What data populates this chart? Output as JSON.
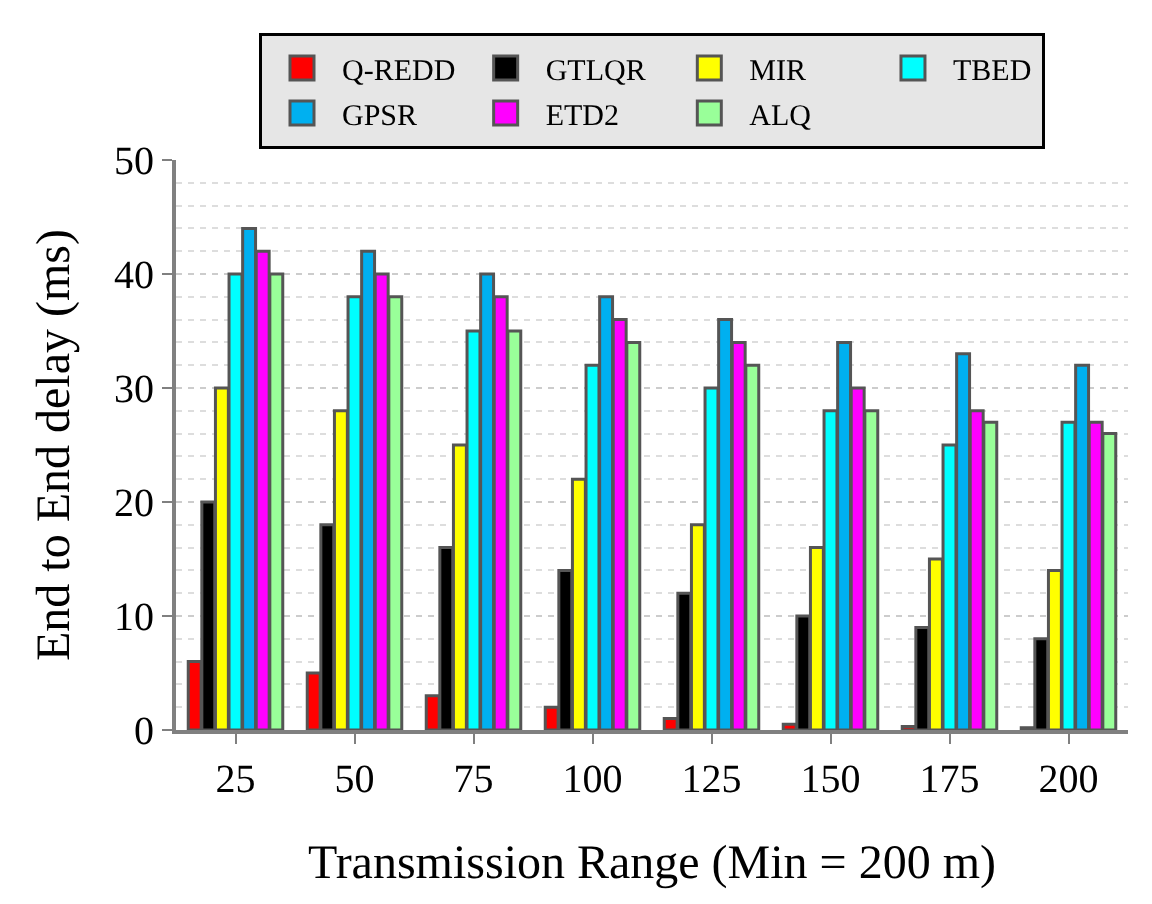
{
  "chart_data": {
    "type": "bar",
    "xlabel": "Transmission Range (Min = 200 m)",
    "ylabel": "End to End delay (ms)",
    "categories": [
      "25",
      "50",
      "75",
      "100",
      "125",
      "150",
      "175",
      "200"
    ],
    "series": [
      {
        "name": "Q-REDD",
        "color": "#ff0000",
        "values": [
          6,
          5,
          3,
          2,
          1,
          0.5,
          0.3,
          0.2
        ]
      },
      {
        "name": "GTLQR",
        "color": "#000000",
        "values": [
          20,
          18,
          16,
          14,
          12,
          10,
          9,
          8
        ]
      },
      {
        "name": "MIR",
        "color": "#ffff00",
        "values": [
          30,
          28,
          25,
          22,
          18,
          16,
          15,
          14
        ]
      },
      {
        "name": "TBED",
        "color": "#00ffff",
        "values": [
          40,
          38,
          35,
          32,
          30,
          28,
          25,
          27
        ]
      },
      {
        "name": "GPSR",
        "color": "#00b0f0",
        "values": [
          44,
          42,
          40,
          38,
          36,
          34,
          33,
          32
        ]
      },
      {
        "name": "ETD2",
        "color": "#ff00ff",
        "values": [
          42,
          40,
          38,
          36,
          34,
          30,
          28,
          27
        ]
      },
      {
        "name": "ALQ",
        "color": "#99ff99",
        "values": [
          40,
          38,
          35,
          34,
          32,
          28,
          27,
          26
        ]
      }
    ],
    "ylim": [
      0,
      50
    ],
    "yticks": [
      0,
      10,
      20,
      30,
      40,
      50
    ],
    "grid": "y",
    "legend": "top"
  }
}
